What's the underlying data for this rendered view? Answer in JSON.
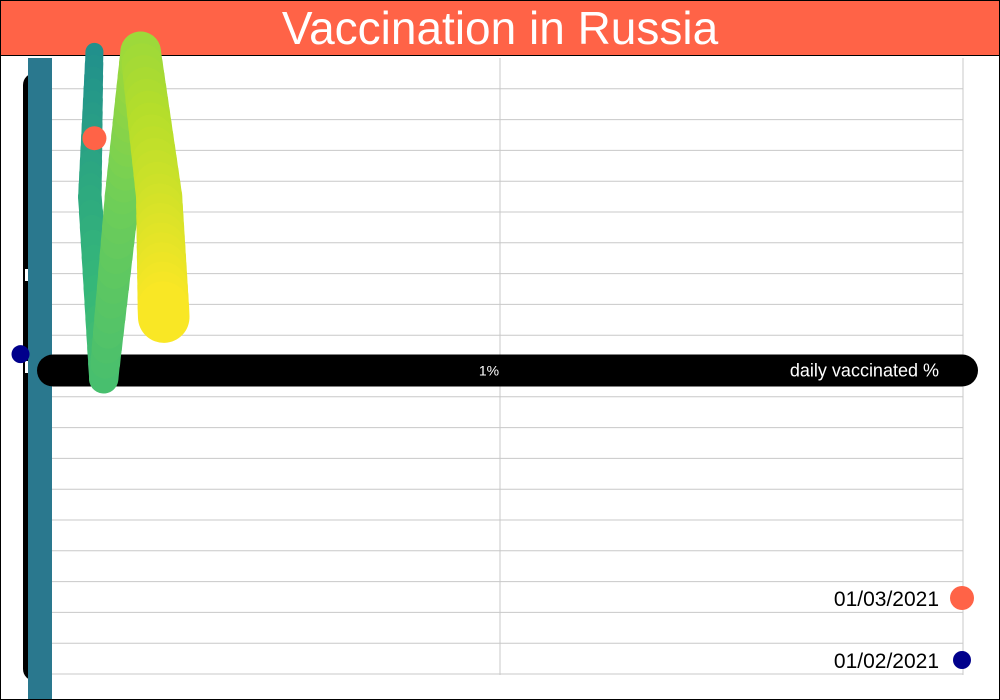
{
  "colors": {
    "title_background": "#ff6347",
    "axis_bar": "#000000",
    "y_axis_band": "#2a788e",
    "gridline": "#c8c8c8",
    "highlight_marker": "#ff6347",
    "baseline_marker": "#00008b",
    "path_gradient": [
      "#21908c",
      "#35b779",
      "#6ece58",
      "#b5de2b",
      "#fde725"
    ]
  },
  "chart_data": {
    "type": "scatter",
    "title": "Vaccination in Russia",
    "xlabel": "daily vaccinated %",
    "x_tick_labels": [
      "1%"
    ],
    "xlim": [
      0,
      2
    ],
    "ylim": [
      -1,
      1
    ],
    "grid": true,
    "legend_position": "bottom-right",
    "legend": [
      {
        "label": "01/03/2021",
        "color": "#ff6347"
      },
      {
        "label": "01/02/2021",
        "color": "#00008b"
      }
    ],
    "path": [
      {
        "x": 0.12,
        "y": 1.02
      },
      {
        "x": 0.11,
        "y": 0.55
      },
      {
        "x": 0.14,
        "y": -0.04
      },
      {
        "x": 0.18,
        "y": 0.55
      },
      {
        "x": 0.22,
        "y": 1.02
      },
      {
        "x": 0.26,
        "y": 0.55
      },
      {
        "x": 0.27,
        "y": 0.16
      }
    ],
    "markers": [
      {
        "name": "01/03/2021",
        "x": 0.12,
        "y": 0.74,
        "color": "#ff6347"
      },
      {
        "name": "01/02/2021",
        "x": -0.04,
        "y": 0.04,
        "color": "#00008b"
      }
    ]
  }
}
